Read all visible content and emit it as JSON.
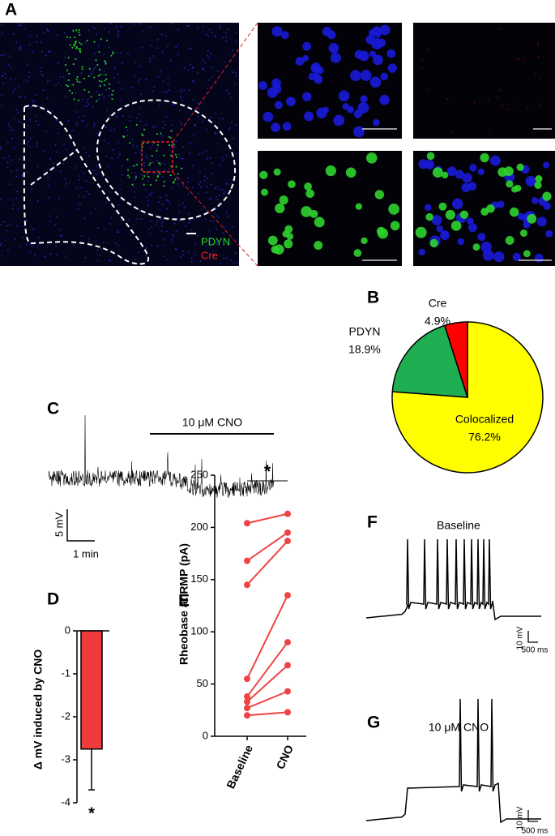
{
  "panel_labels": [
    "A",
    "B",
    "C",
    "D",
    "E",
    "F",
    "G"
  ],
  "panel_a": {
    "legend": [
      "PDYN",
      "Cre"
    ]
  },
  "panel_c": {
    "drug_label": "10 μM CNO",
    "scale_y": "5 mV",
    "scale_x": "1 min"
  },
  "panel_f": {
    "title": "Baseline",
    "scale_y": "10 mV",
    "scale_x": "500 ms"
  },
  "panel_g": {
    "title": "10 μM CNO",
    "scale_y": "10 mV",
    "scale_x": "500 ms"
  },
  "chart_data": [
    {
      "type": "pie",
      "categories": [
        "Colocalized",
        "PDYN",
        "Cre"
      ],
      "values": [
        76.2,
        18.9,
        4.9
      ],
      "value_labels": [
        "76.2%",
        "18.9%",
        "4.9%"
      ],
      "colors": [
        "#ffff00",
        "#1fae52",
        "#ff0000"
      ]
    },
    {
      "type": "bar",
      "ylabel": "Δ mV induced by CNO",
      "categories": [
        null
      ],
      "values": [
        -2.75
      ],
      "errors": [
        0.95
      ],
      "color": "#ee3b3b",
      "ylim": [
        -4,
        0
      ],
      "yticks": [
        -4,
        -3,
        -2,
        -1,
        0
      ],
      "annotation": "*"
    },
    {
      "type": "line",
      "ylabel": "Rheobase at RMP (pA)",
      "categories": [
        "Baseline",
        "CNO"
      ],
      "series": [
        {
          "values": [
            204,
            213
          ]
        },
        {
          "values": [
            168,
            195
          ]
        },
        {
          "values": [
            145,
            187
          ]
        },
        {
          "values": [
            55,
            135
          ]
        },
        {
          "values": [
            38,
            90
          ]
        },
        {
          "values": [
            33,
            68
          ]
        },
        {
          "values": [
            27,
            43
          ]
        },
        {
          "values": [
            20,
            23
          ]
        }
      ],
      "color": "#ee4444",
      "ylim": [
        0,
        250
      ],
      "yticks": [
        0,
        50,
        100,
        150,
        200,
        250
      ],
      "annotation": "*"
    }
  ]
}
